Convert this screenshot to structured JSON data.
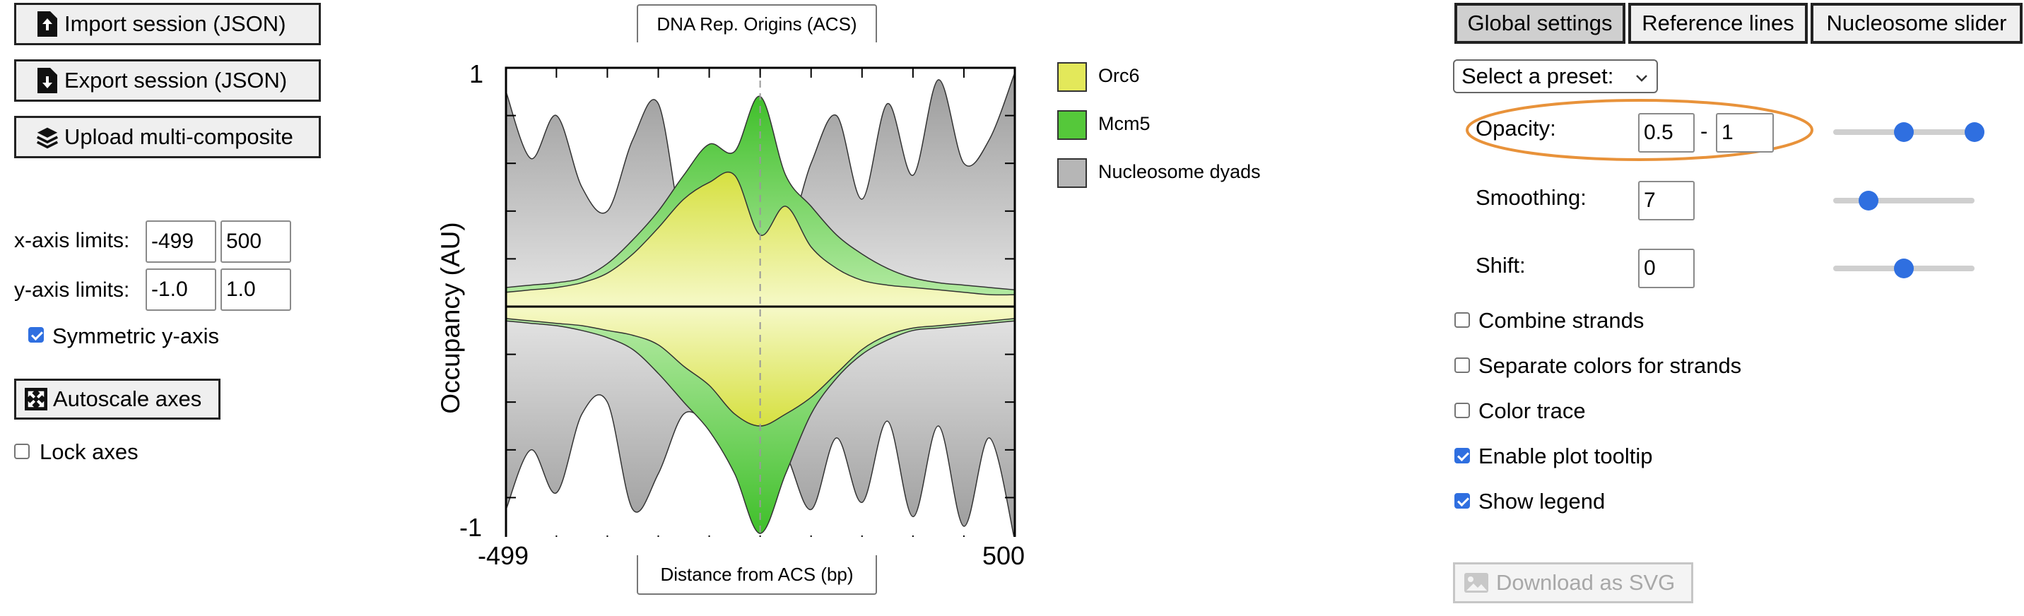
{
  "left": {
    "import_label": "Import session (JSON)",
    "export_label": "Export session (JSON)",
    "upload_label": "Upload multi-composite",
    "xlim_label": "x-axis limits:",
    "xlim_min": "-499",
    "xlim_max": "500",
    "ylim_label": "y-axis limits:",
    "ylim_min": "-1.0",
    "ylim_max": "1.0",
    "symmetric_label": "Symmetric y-axis",
    "symmetric_checked": true,
    "autoscale_label": "Autoscale axes",
    "lock_label": "Lock axes",
    "lock_checked": false
  },
  "plot": {
    "title": "DNA Rep. Origins (ACS)",
    "xlabel": "Distance from ACS (bp)",
    "ylabel": "Occupancy (AU)",
    "x_min_label": "-499",
    "x_max_label": "500",
    "y_max_label": "1",
    "y_min_label": "-1"
  },
  "chart_data": {
    "type": "area",
    "title": "DNA Rep. Origins (ACS)",
    "xlabel": "Distance from ACS (bp)",
    "ylabel": "Occupancy (AU)",
    "xlim": [
      -499,
      500
    ],
    "ylim": [
      -1,
      1
    ],
    "reference_line_x": 0,
    "x": [
      -499,
      -450,
      -400,
      -350,
      -300,
      -250,
      -200,
      -150,
      -100,
      -50,
      0,
      50,
      100,
      150,
      200,
      250,
      300,
      350,
      400,
      450,
      500
    ],
    "series": [
      {
        "name": "Orc6",
        "color": "#e3e85a",
        "forward": [
          0.06,
          0.07,
          0.08,
          0.1,
          0.14,
          0.22,
          0.33,
          0.45,
          0.52,
          0.55,
          0.3,
          0.42,
          0.25,
          0.16,
          0.11,
          0.09,
          0.08,
          0.07,
          0.06,
          0.05,
          0.05
        ],
        "reverse": [
          -0.05,
          -0.06,
          -0.07,
          -0.08,
          -0.1,
          -0.12,
          -0.16,
          -0.25,
          -0.33,
          -0.45,
          -0.5,
          -0.45,
          -0.38,
          -0.28,
          -0.18,
          -0.12,
          -0.09,
          -0.08,
          -0.07,
          -0.06,
          -0.05
        ]
      },
      {
        "name": "Mcm5",
        "color": "#55c83a",
        "forward": [
          0.08,
          0.09,
          0.1,
          0.12,
          0.18,
          0.28,
          0.4,
          0.55,
          0.68,
          0.65,
          0.88,
          0.55,
          0.42,
          0.3,
          0.22,
          0.16,
          0.12,
          0.1,
          0.09,
          0.08,
          0.07
        ],
        "reverse": [
          -0.06,
          -0.07,
          -0.08,
          -0.1,
          -0.13,
          -0.18,
          -0.28,
          -0.4,
          -0.52,
          -0.7,
          -0.95,
          -0.7,
          -0.45,
          -0.3,
          -0.2,
          -0.14,
          -0.1,
          -0.09,
          -0.08,
          -0.07,
          -0.06
        ]
      },
      {
        "name": "Nucleosome dyads",
        "color": "#b6b6b6",
        "forward": [
          0.9,
          0.62,
          0.8,
          0.5,
          0.4,
          0.7,
          0.85,
          0.3,
          0.25,
          0.35,
          0.55,
          0.3,
          0.6,
          0.8,
          0.45,
          0.85,
          0.55,
          0.95,
          0.6,
          0.7,
          0.98
        ],
        "reverse": [
          -0.85,
          -0.6,
          -0.78,
          -0.45,
          -0.4,
          -0.85,
          -0.7,
          -0.45,
          -0.5,
          -0.6,
          -0.55,
          -0.62,
          -0.85,
          -0.55,
          -0.82,
          -0.48,
          -0.88,
          -0.5,
          -0.92,
          -0.55,
          -0.98
        ]
      }
    ],
    "legend_position": "right"
  },
  "legend": {
    "items": [
      "Orc6",
      "Mcm5",
      "Nucleosome dyads"
    ]
  },
  "right": {
    "tabs": [
      "Global settings",
      "Reference lines",
      "Nucleosome slider"
    ],
    "preset_label": "Select a preset:",
    "opacity_label": "Opacity:",
    "opacity_min": "0.5",
    "opacity_sep": "-",
    "opacity_max": "1",
    "smoothing_label": "Smoothing:",
    "smoothing_value": "7",
    "shift_label": "Shift:",
    "shift_value": "0",
    "opacity_slider": [
      0.5,
      1.0
    ],
    "smoothing_slider": 0.25,
    "shift_slider": 0.5,
    "checkboxes": [
      {
        "label": "Combine strands",
        "checked": false
      },
      {
        "label": "Separate colors for strands",
        "checked": false
      },
      {
        "label": "Color trace",
        "checked": false
      },
      {
        "label": "Enable plot tooltip",
        "checked": true
      },
      {
        "label": "Show legend",
        "checked": true
      }
    ],
    "download_label": "Download as SVG",
    "highlight_color": "#e8923a",
    "accent_color": "#2f6fe0"
  }
}
